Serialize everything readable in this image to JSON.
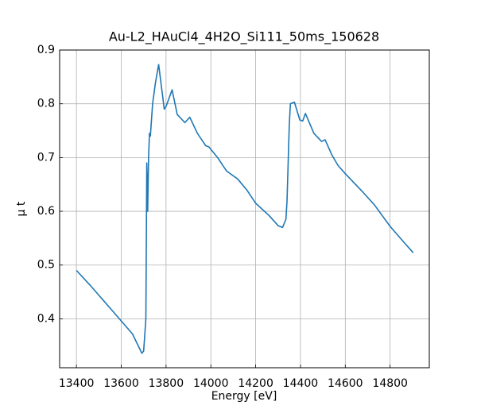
{
  "chart_data": {
    "type": "line",
    "title": "Au-L2_HAuCl4_4H2O_Si111_50ms_150628",
    "xlabel": "Energy [eV]",
    "ylabel": "μ t",
    "color": "#1f77b4",
    "x": [
      13400,
      13460,
      13550,
      13650,
      13692,
      13700,
      13710,
      13714,
      13718,
      13722,
      13726,
      13730,
      13740,
      13753,
      13767,
      13780,
      13792,
      13800,
      13827,
      13850,
      13884,
      13906,
      13940,
      13977,
      13991,
      14030,
      14070,
      14120,
      14160,
      14200,
      14260,
      14301,
      14320,
      14335,
      14340,
      14350,
      14355,
      14373,
      14397,
      14410,
      14422,
      14460,
      14494,
      14510,
      14540,
      14568,
      14600,
      14680,
      14730,
      14800,
      14850,
      14903
    ],
    "values": [
      0.49,
      0.463,
      0.42,
      0.372,
      0.336,
      0.34,
      0.4,
      0.69,
      0.6,
      0.7,
      0.745,
      0.74,
      0.8,
      0.84,
      0.873,
      0.83,
      0.79,
      0.795,
      0.826,
      0.78,
      0.765,
      0.775,
      0.745,
      0.722,
      0.72,
      0.7,
      0.675,
      0.66,
      0.64,
      0.615,
      0.592,
      0.573,
      0.57,
      0.585,
      0.62,
      0.76,
      0.8,
      0.803,
      0.77,
      0.768,
      0.782,
      0.745,
      0.73,
      0.733,
      0.705,
      0.685,
      0.67,
      0.635,
      0.612,
      0.572,
      0.548,
      0.523
    ],
    "xlim": [
      13325,
      14975
    ],
    "ylim": [
      0.309,
      0.9
    ],
    "xticks": [
      13400,
      13600,
      13800,
      14000,
      14200,
      14400,
      14600,
      14800
    ],
    "yticks": [
      0.4,
      0.5,
      0.6,
      0.7,
      0.8,
      0.9
    ],
    "grid": true
  }
}
